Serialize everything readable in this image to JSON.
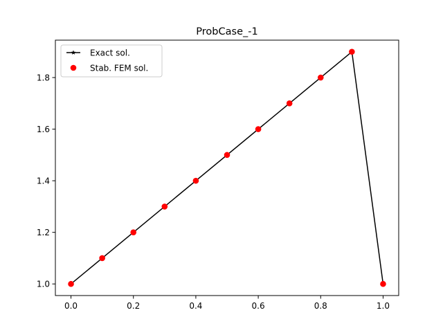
{
  "chart_data": {
    "type": "line",
    "title": "ProbCase_-1",
    "xlabel": "",
    "ylabel": "",
    "xlim": [
      -0.05,
      1.05
    ],
    "ylim": [
      0.955,
      1.945
    ],
    "xticks": [
      0.0,
      0.2,
      0.4,
      0.6,
      0.8,
      1.0
    ],
    "xtick_labels": [
      "0.0",
      "0.2",
      "0.4",
      "0.6",
      "0.8",
      "1.0"
    ],
    "yticks": [
      1.0,
      1.2,
      1.4,
      1.6,
      1.8
    ],
    "ytick_labels": [
      "1.0",
      "1.2",
      "1.4",
      "1.6",
      "1.8"
    ],
    "grid": false,
    "legend_position": "upper-left",
    "series": [
      {
        "name": "Exact sol.",
        "style": "line",
        "marker": "star",
        "color": "#000000",
        "x": [
          0.0,
          0.9,
          1.0
        ],
        "y": [
          1.0,
          1.9,
          1.0
        ]
      },
      {
        "name": "Stab. FEM sol.",
        "style": "markers",
        "marker": "circle",
        "color": "#ff0000",
        "x": [
          0.0,
          0.1,
          0.2,
          0.3,
          0.4,
          0.5,
          0.6,
          0.7,
          0.8,
          0.9,
          1.0
        ],
        "y": [
          1.0,
          1.1,
          1.2,
          1.3,
          1.4,
          1.5,
          1.6,
          1.7,
          1.8,
          1.9,
          1.0
        ]
      }
    ]
  }
}
